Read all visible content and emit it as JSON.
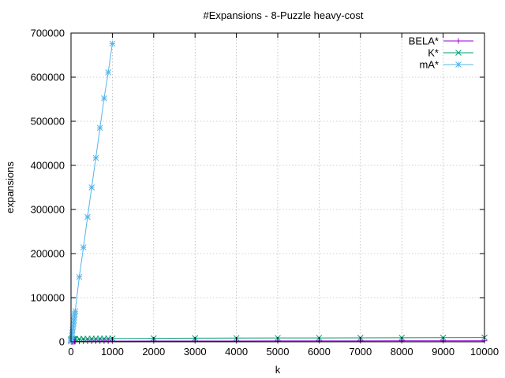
{
  "chart_data": {
    "type": "line",
    "title": "#Expansions - 8-Puzzle heavy-cost",
    "xlabel": "k",
    "ylabel": "expansions",
    "xlim": [
      0,
      10000
    ],
    "ylim": [
      0,
      700000
    ],
    "xticks": [
      0,
      1000,
      2000,
      3000,
      4000,
      5000,
      6000,
      7000,
      8000,
      9000,
      10000
    ],
    "yticks": [
      0,
      100000,
      200000,
      300000,
      400000,
      500000,
      600000,
      700000
    ],
    "grid": true,
    "legend": "top-right",
    "series": [
      {
        "name": "BELA*",
        "color": "#9400d3",
        "marker": "plus",
        "x": [
          1,
          2,
          3,
          4,
          5,
          10,
          20,
          30,
          40,
          50,
          60,
          70,
          80,
          90,
          100,
          200,
          300,
          400,
          500,
          600,
          700,
          800,
          900,
          1000,
          2000,
          3000,
          4000,
          5000,
          6000,
          7000,
          8000,
          9000,
          10000
        ],
        "y": [
          50,
          60,
          70,
          80,
          90,
          120,
          180,
          240,
          300,
          360,
          400,
          440,
          480,
          520,
          560,
          800,
          1000,
          1100,
          1200,
          1300,
          1400,
          1450,
          1500,
          1550,
          1700,
          1800,
          1900,
          2000,
          2050,
          2100,
          2150,
          2200,
          2250
        ]
      },
      {
        "name": "K*",
        "color": "#009e73",
        "marker": "x",
        "x": [
          1,
          2,
          3,
          4,
          5,
          10,
          20,
          30,
          40,
          50,
          60,
          70,
          80,
          90,
          100,
          200,
          300,
          400,
          500,
          600,
          700,
          800,
          900,
          1000,
          2000,
          3000,
          4000,
          5000,
          6000,
          7000,
          8000,
          9000,
          10000
        ],
        "y": [
          5000,
          5050,
          5100,
          5150,
          5200,
          5300,
          5400,
          5500,
          5600,
          5700,
          5800,
          5900,
          6000,
          6100,
          6200,
          6500,
          6700,
          6800,
          6900,
          7000,
          7100,
          7200,
          7300,
          7400,
          7800,
          8200,
          8400,
          8600,
          8800,
          9000,
          9200,
          9400,
          9600
        ]
      },
      {
        "name": "mA*",
        "color": "#56b4e9",
        "marker": "star",
        "x": [
          1,
          2,
          3,
          4,
          5,
          10,
          20,
          30,
          40,
          50,
          60,
          70,
          80,
          90,
          100,
          200,
          300,
          400,
          500,
          600,
          700,
          800,
          900,
          1000
        ],
        "y": [
          600,
          1200,
          1800,
          2400,
          3000,
          6500,
          13500,
          20500,
          27500,
          34500,
          41500,
          48500,
          55500,
          62500,
          69500,
          147000,
          214000,
          283000,
          350000,
          417000,
          485000,
          552000,
          611000,
          676000
        ]
      }
    ]
  }
}
